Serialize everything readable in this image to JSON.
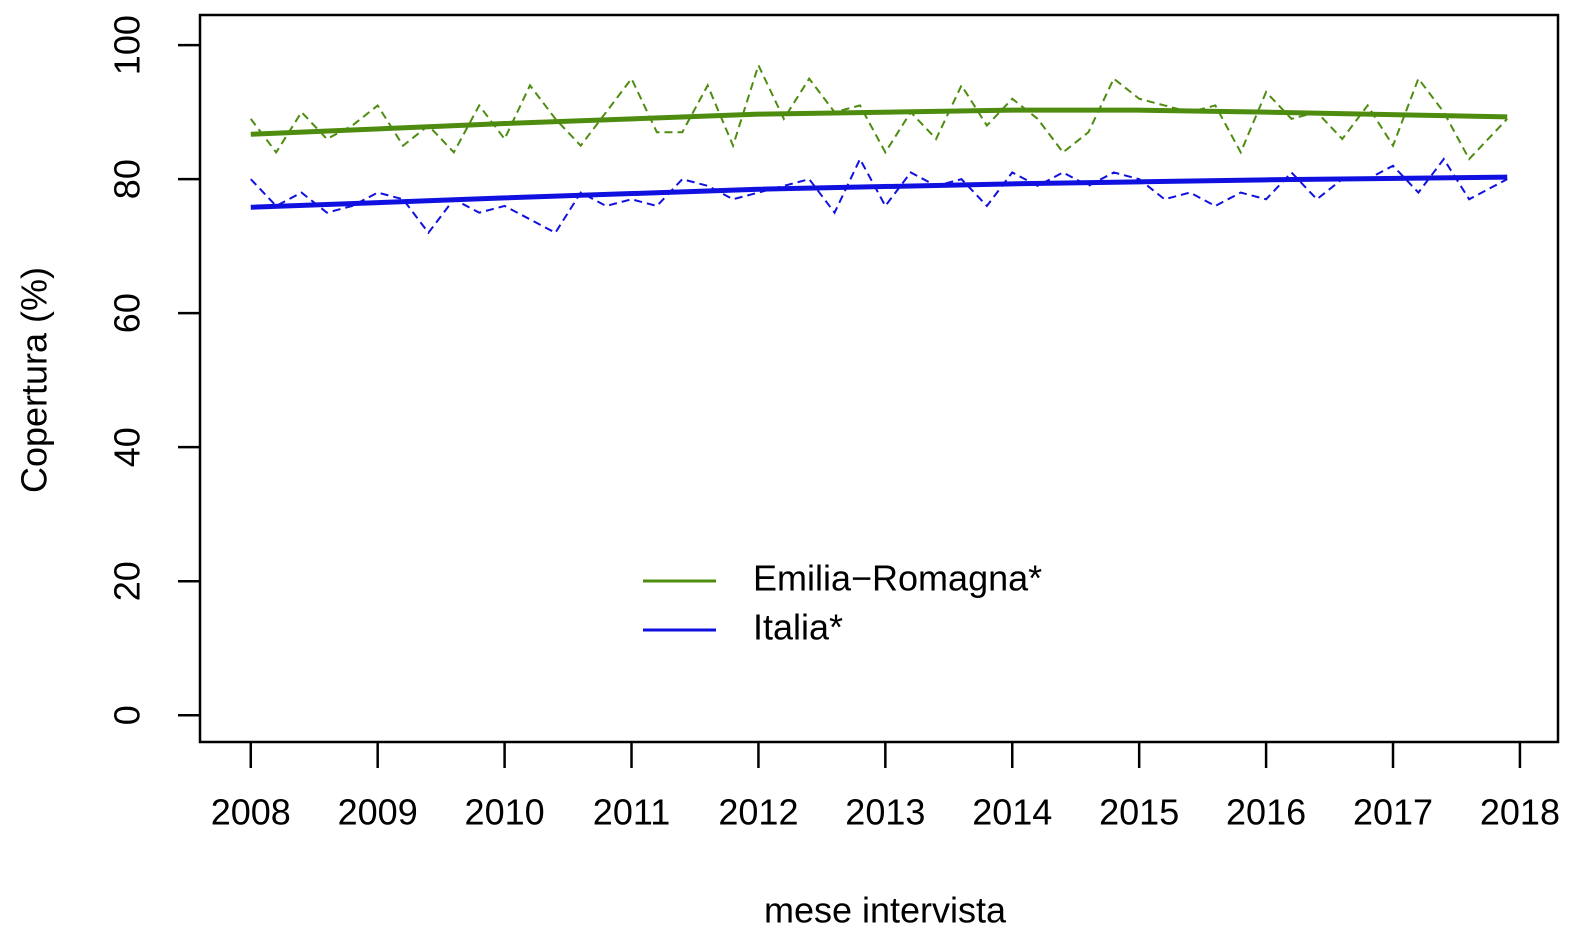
{
  "chart_data": {
    "type": "line",
    "xlabel": "mese intervista",
    "ylabel": "Copertura (%)",
    "x": [
      2008,
      2008.2,
      2008.4,
      2008.6,
      2008.8,
      2009,
      2009.2,
      2009.4,
      2009.6,
      2009.8,
      2010,
      2010.2,
      2010.4,
      2010.6,
      2010.8,
      2011,
      2011.2,
      2011.4,
      2011.6,
      2011.8,
      2012,
      2012.2,
      2012.4,
      2012.6,
      2012.8,
      2013,
      2013.2,
      2013.4,
      2013.6,
      2013.8,
      2014,
      2014.2,
      2014.4,
      2014.6,
      2014.8,
      2015,
      2015.2,
      2015.4,
      2015.6,
      2015.8,
      2016,
      2016.2,
      2016.4,
      2016.6,
      2016.8,
      2017,
      2017.2,
      2017.4,
      2017.6,
      2017.9
    ],
    "trend_x": [
      2008,
      2010,
      2012,
      2014,
      2015,
      2016,
      2017.9
    ],
    "series": [
      {
        "name": "Emilia−Romagna*",
        "color": "#4d8c0f",
        "values": [
          89,
          84,
          90,
          86,
          88,
          91,
          85,
          88,
          84,
          91,
          86,
          94,
          89,
          85,
          90,
          95,
          87,
          87,
          94,
          85,
          97,
          89,
          95,
          90,
          91,
          84,
          90,
          86,
          94,
          88,
          92,
          89,
          84,
          87,
          95,
          92,
          91,
          90,
          91,
          84,
          93,
          89,
          90,
          86,
          91,
          85,
          95,
          90,
          83,
          89
        ],
        "trend": [
          86.7,
          88.3,
          89.7,
          90.3,
          90.3,
          90.0,
          89.3
        ]
      },
      {
        "name": "Italia*",
        "color": "#1010e0",
        "values": [
          80,
          76,
          78,
          75,
          76,
          78,
          77,
          72,
          77,
          75,
          76,
          74,
          72,
          78,
          76,
          77,
          76,
          80,
          79,
          77,
          78,
          79,
          80,
          75,
          83,
          76,
          81,
          79,
          80,
          76,
          81,
          79,
          81,
          79,
          81,
          80,
          77,
          78,
          76,
          78,
          77,
          81,
          77,
          80,
          80,
          82,
          78,
          83,
          77,
          80
        ],
        "trend": [
          75.8,
          77.2,
          78.5,
          79.3,
          79.6,
          79.9,
          80.3
        ]
      }
    ],
    "xlim": [
      2007.6,
      2018.3
    ],
    "xticks": [
      2008,
      2009,
      2010,
      2011,
      2012,
      2013,
      2014,
      2015,
      2016,
      2017,
      2018
    ],
    "ylim": [
      -4,
      104.5
    ],
    "yticks": [
      0,
      20,
      40,
      60,
      80,
      100
    ],
    "legend": "bottom"
  }
}
